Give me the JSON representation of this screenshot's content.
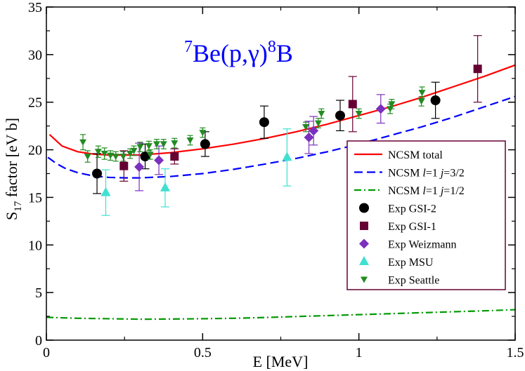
{
  "chart_data": {
    "type": "scatter",
    "title_parts": {
      "pre_sup": "7",
      "main": "Be(p,γ)",
      "sup": "8",
      "post": "B"
    },
    "title_color": "#0000ff",
    "xlabel": "E [MeV]",
    "ylabel_parts": {
      "s": "S",
      "sub": "17",
      "rest": " factor [eV b]"
    },
    "xlim": [
      0,
      1.5
    ],
    "ylim": [
      0,
      35
    ],
    "x_ticks": [
      0,
      0.5,
      1,
      1.5
    ],
    "x_tick_labels": [
      "0",
      "0.5",
      "1",
      "1.5"
    ],
    "y_ticks": [
      0,
      5,
      10,
      15,
      20,
      25,
      30,
      35
    ],
    "y_tick_labels": [
      "0",
      "5",
      "10",
      "15",
      "20",
      "25",
      "30",
      "35"
    ],
    "grid": false,
    "legend_position": "bottom-right",
    "lines": [
      {
        "name": "NCSM total",
        "color": "#ff0000",
        "dash": "solid",
        "x": [
          0.01,
          0.05,
          0.1,
          0.15,
          0.2,
          0.3,
          0.4,
          0.5,
          0.6,
          0.7,
          0.8,
          0.9,
          1.0,
          1.1,
          1.2,
          1.3,
          1.4,
          1.5
        ],
        "y": [
          21.6,
          20.4,
          19.8,
          19.55,
          19.45,
          19.45,
          19.7,
          20.1,
          20.6,
          21.2,
          21.9,
          22.7,
          23.6,
          24.5,
          25.5,
          26.6,
          27.7,
          28.9
        ]
      },
      {
        "name": "NCSM l=1 j=3/2",
        "color": "#0000ff",
        "dash": "dash",
        "x": [
          0.005,
          0.03,
          0.06,
          0.1,
          0.15,
          0.2,
          0.25,
          0.3,
          0.4,
          0.5,
          0.6,
          0.7,
          0.8,
          0.9,
          1.0,
          1.1,
          1.2,
          1.3,
          1.4,
          1.5
        ],
        "y": [
          19.2,
          18.6,
          18.05,
          17.6,
          17.25,
          17.1,
          17.05,
          17.05,
          17.2,
          17.5,
          17.95,
          18.5,
          19.1,
          19.8,
          20.6,
          21.5,
          22.4,
          23.4,
          24.5,
          25.6
        ]
      },
      {
        "name": "NCSM l=1 j=1/2",
        "color": "#009900",
        "dash": "dashdot",
        "x": [
          0.0,
          0.1,
          0.2,
          0.3,
          0.4,
          0.5,
          0.6,
          0.7,
          0.8,
          0.9,
          1.0,
          1.1,
          1.2,
          1.3,
          1.4,
          1.5
        ],
        "y": [
          2.4,
          2.3,
          2.25,
          2.2,
          2.22,
          2.25,
          2.3,
          2.38,
          2.48,
          2.58,
          2.68,
          2.78,
          2.88,
          2.98,
          3.08,
          3.2
        ]
      }
    ],
    "series": [
      {
        "name": "Exp GSI-2",
        "marker": "circle",
        "color": "#000000",
        "err_color": "#000000",
        "points": [
          [
            0.162,
            17.5,
            2.1
          ],
          [
            0.316,
            19.3,
            1.3
          ],
          [
            0.508,
            20.6,
            1.3
          ],
          [
            0.697,
            22.9,
            1.7
          ],
          [
            0.94,
            23.6,
            1.6
          ],
          [
            1.245,
            25.2,
            1.9
          ]
        ]
      },
      {
        "name": "Exp GSI-1",
        "marker": "square",
        "color": "#660033",
        "err_color": "#660033",
        "points": [
          [
            0.248,
            18.3,
            1.6
          ],
          [
            0.41,
            19.3,
            0.8
          ],
          [
            0.98,
            24.8,
            2.9
          ],
          [
            1.38,
            28.5,
            3.5
          ]
        ]
      },
      {
        "name": "Exp Weizmann",
        "marker": "diamond",
        "color": "#7b2fbe",
        "err_color": "#7b2fbe",
        "points": [
          [
            0.297,
            18.2,
            2.5
          ],
          [
            0.36,
            18.9,
            1.5
          ],
          [
            0.84,
            21.3,
            1.7
          ],
          [
            0.855,
            22.0,
            1.5
          ],
          [
            1.07,
            24.3,
            1.5
          ]
        ]
      },
      {
        "name": "Exp MSU",
        "marker": "triangle-up",
        "color": "#40e0d0",
        "err_color": "#40e0d0",
        "points": [
          [
            0.19,
            15.5,
            2.4
          ],
          [
            0.38,
            16.0,
            2.0
          ],
          [
            0.77,
            19.2,
            3.0
          ]
        ]
      },
      {
        "name": "Exp Seattle",
        "marker": "triangle-down",
        "color": "#228b22",
        "err_color": "#228b22",
        "points": [
          [
            0.117,
            20.8,
            0.8
          ],
          [
            0.132,
            19.3,
            0.6
          ],
          [
            0.166,
            19.8,
            0.6
          ],
          [
            0.186,
            19.6,
            0.6
          ],
          [
            0.205,
            19.4,
            0.5
          ],
          [
            0.222,
            19.3,
            0.5
          ],
          [
            0.246,
            19.3,
            0.5
          ],
          [
            0.268,
            19.6,
            0.5
          ],
          [
            0.28,
            19.9,
            0.5
          ],
          [
            0.3,
            20.3,
            0.5
          ],
          [
            0.328,
            20.4,
            0.5
          ],
          [
            0.332,
            19.5,
            0.5
          ],
          [
            0.353,
            20.6,
            0.5
          ],
          [
            0.375,
            20.6,
            0.5
          ],
          [
            0.41,
            20.7,
            0.5
          ],
          [
            0.46,
            21.0,
            0.5
          ],
          [
            0.5,
            21.8,
            0.5
          ],
          [
            0.83,
            22.4,
            0.5
          ],
          [
            0.87,
            22.8,
            0.5
          ],
          [
            0.88,
            23.8,
            0.5
          ],
          [
            1.0,
            23.8,
            0.5
          ],
          [
            1.1,
            24.3,
            0.5
          ],
          [
            1.105,
            24.8,
            0.5
          ],
          [
            1.2,
            25.1,
            0.5
          ],
          [
            1.202,
            26.0,
            0.6
          ]
        ]
      }
    ],
    "legend": [
      {
        "label": "NCSM total",
        "kind": "line",
        "ref": "NCSM total"
      },
      {
        "label_parts": [
          "NCSM ",
          "l",
          "=1 ",
          "j",
          "=3/2"
        ],
        "kind": "line",
        "ref": "NCSM l=1 j=3/2"
      },
      {
        "label_parts": [
          "NCSM ",
          "l",
          "=1 ",
          "j",
          "=1/2"
        ],
        "kind": "line",
        "ref": "NCSM l=1 j=1/2"
      },
      {
        "label": "Exp GSI-2",
        "kind": "marker",
        "ref": "Exp GSI-2"
      },
      {
        "label": "Exp GSI-1",
        "kind": "marker",
        "ref": "Exp GSI-1"
      },
      {
        "label": "Exp Weizmann",
        "kind": "marker",
        "ref": "Exp Weizmann"
      },
      {
        "label": "Exp MSU",
        "kind": "marker",
        "ref": "Exp MSU"
      },
      {
        "label": "Exp Seattle",
        "kind": "marker",
        "ref": "Exp Seattle"
      }
    ],
    "legend_border_color": "#660033"
  }
}
